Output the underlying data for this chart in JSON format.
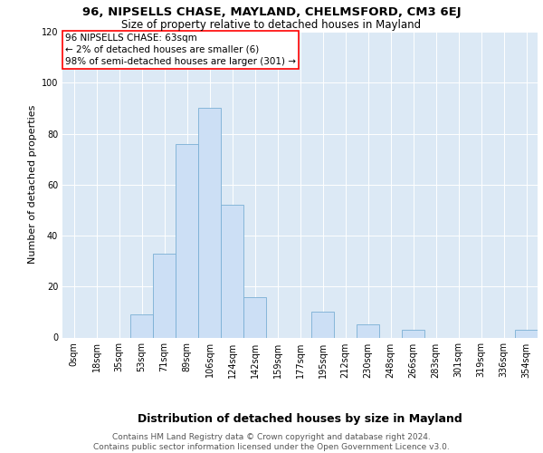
{
  "title_line1": "96, NIPSELLS CHASE, MAYLAND, CHELMSFORD, CM3 6EJ",
  "title_line2": "Size of property relative to detached houses in Mayland",
  "xlabel": "Distribution of detached houses by size in Mayland",
  "ylabel": "Number of detached properties",
  "bar_color": "#ccdff5",
  "bar_edge_color": "#7aafd4",
  "background_color": "#dce9f5",
  "bin_labels": [
    "0sqm",
    "18sqm",
    "35sqm",
    "53sqm",
    "71sqm",
    "89sqm",
    "106sqm",
    "124sqm",
    "142sqm",
    "159sqm",
    "177sqm",
    "195sqm",
    "212sqm",
    "230sqm",
    "248sqm",
    "266sqm",
    "283sqm",
    "301sqm",
    "319sqm",
    "336sqm",
    "354sqm"
  ],
  "bar_values": [
    0,
    0,
    0,
    9,
    33,
    76,
    90,
    52,
    16,
    0,
    0,
    10,
    0,
    5,
    0,
    3,
    0,
    0,
    0,
    0,
    3
  ],
  "ylim": [
    0,
    120
  ],
  "yticks": [
    0,
    20,
    40,
    60,
    80,
    100,
    120
  ],
  "annotation_text": "96 NIPSELLS CHASE: 63sqm\n← 2% of detached houses are smaller (6)\n98% of semi-detached houses are larger (301) →",
  "box_color": "white",
  "box_edge_color": "red",
  "footer_text": "Contains HM Land Registry data © Crown copyright and database right 2024.\nContains public sector information licensed under the Open Government Licence v3.0.",
  "title_fontsize": 9.5,
  "subtitle_fontsize": 8.5,
  "axis_ylabel_fontsize": 8,
  "axis_xlabel_fontsize": 9,
  "tick_fontsize": 7,
  "annotation_fontsize": 7.5,
  "footer_fontsize": 6.5
}
